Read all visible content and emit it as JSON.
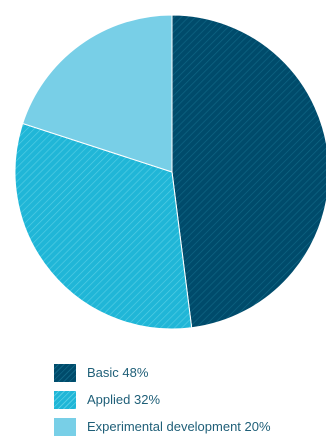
{
  "chart_data": {
    "type": "pie",
    "title": "",
    "slices": [
      {
        "label": "Basic 48%",
        "value": 48,
        "color": "#004b6b",
        "pattern": "dark-hatch"
      },
      {
        "label": "Applied 32%",
        "value": 32,
        "color": "#20b6d7",
        "pattern": "light-hatch"
      },
      {
        "label": "Experimental development 20%",
        "value": 20,
        "color": "#78cfe7",
        "pattern": "solid"
      }
    ],
    "start_angle_degrees": 0,
    "direction": "clockwise"
  }
}
